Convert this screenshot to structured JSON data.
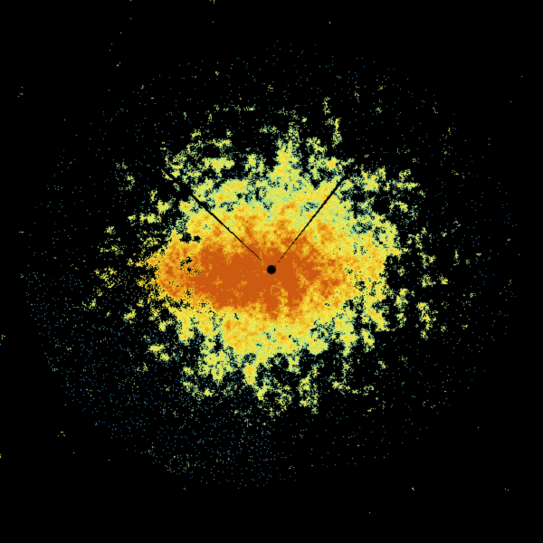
{
  "image": {
    "kind": "radar-reflectivity-sweep",
    "background": "#000000",
    "colormap": [
      "#1f6fa8",
      "#3c9cc4",
      "#6cc0b8",
      "#b8e07a",
      "#f2ea4c",
      "#f0c22a",
      "#e4921a",
      "#cc5a10"
    ],
    "radar_site_color": "#000000",
    "beam_blockage_wedges": 2
  }
}
